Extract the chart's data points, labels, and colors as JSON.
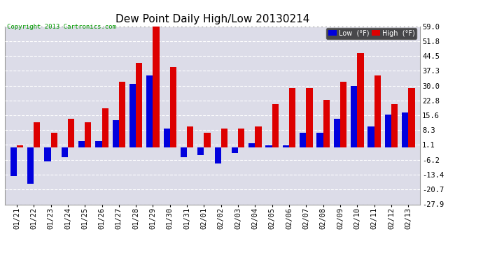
{
  "title": "Dew Point Daily High/Low 20130214",
  "copyright": "Copyright 2013 Cartronics.com",
  "dates": [
    "01/21",
    "01/22",
    "01/23",
    "01/24",
    "01/25",
    "01/26",
    "01/27",
    "01/28",
    "01/29",
    "01/30",
    "01/31",
    "02/01",
    "02/02",
    "02/03",
    "02/04",
    "02/05",
    "02/06",
    "02/07",
    "02/08",
    "02/09",
    "02/10",
    "02/11",
    "02/12",
    "02/13"
  ],
  "low": [
    -14,
    -18,
    -7,
    -5,
    3,
    3,
    13,
    31,
    35,
    9,
    -5,
    -4,
    -8,
    -3,
    2,
    1,
    1,
    7,
    7,
    14,
    30,
    10,
    16,
    17
  ],
  "high": [
    1,
    12,
    7,
    14,
    12,
    19,
    32,
    41,
    59,
    39,
    10,
    7,
    9,
    9,
    10,
    21,
    29,
    29,
    23,
    32,
    46,
    35,
    21,
    29
  ],
  "ylim": [
    -27.9,
    59.0
  ],
  "yticks": [
    -27.9,
    -20.7,
    -13.4,
    -6.2,
    1.1,
    8.3,
    15.6,
    22.8,
    30.0,
    37.3,
    44.5,
    51.8,
    59.0
  ],
  "bar_width": 0.38,
  "low_color": "#0000dd",
  "high_color": "#dd0000",
  "bg_color": "#ffffff",
  "plot_bg_color": "#dcdce8",
  "grid_color": "#ffffff",
  "title_fontsize": 11,
  "tick_fontsize": 7.5,
  "copyright_color": "#009900"
}
